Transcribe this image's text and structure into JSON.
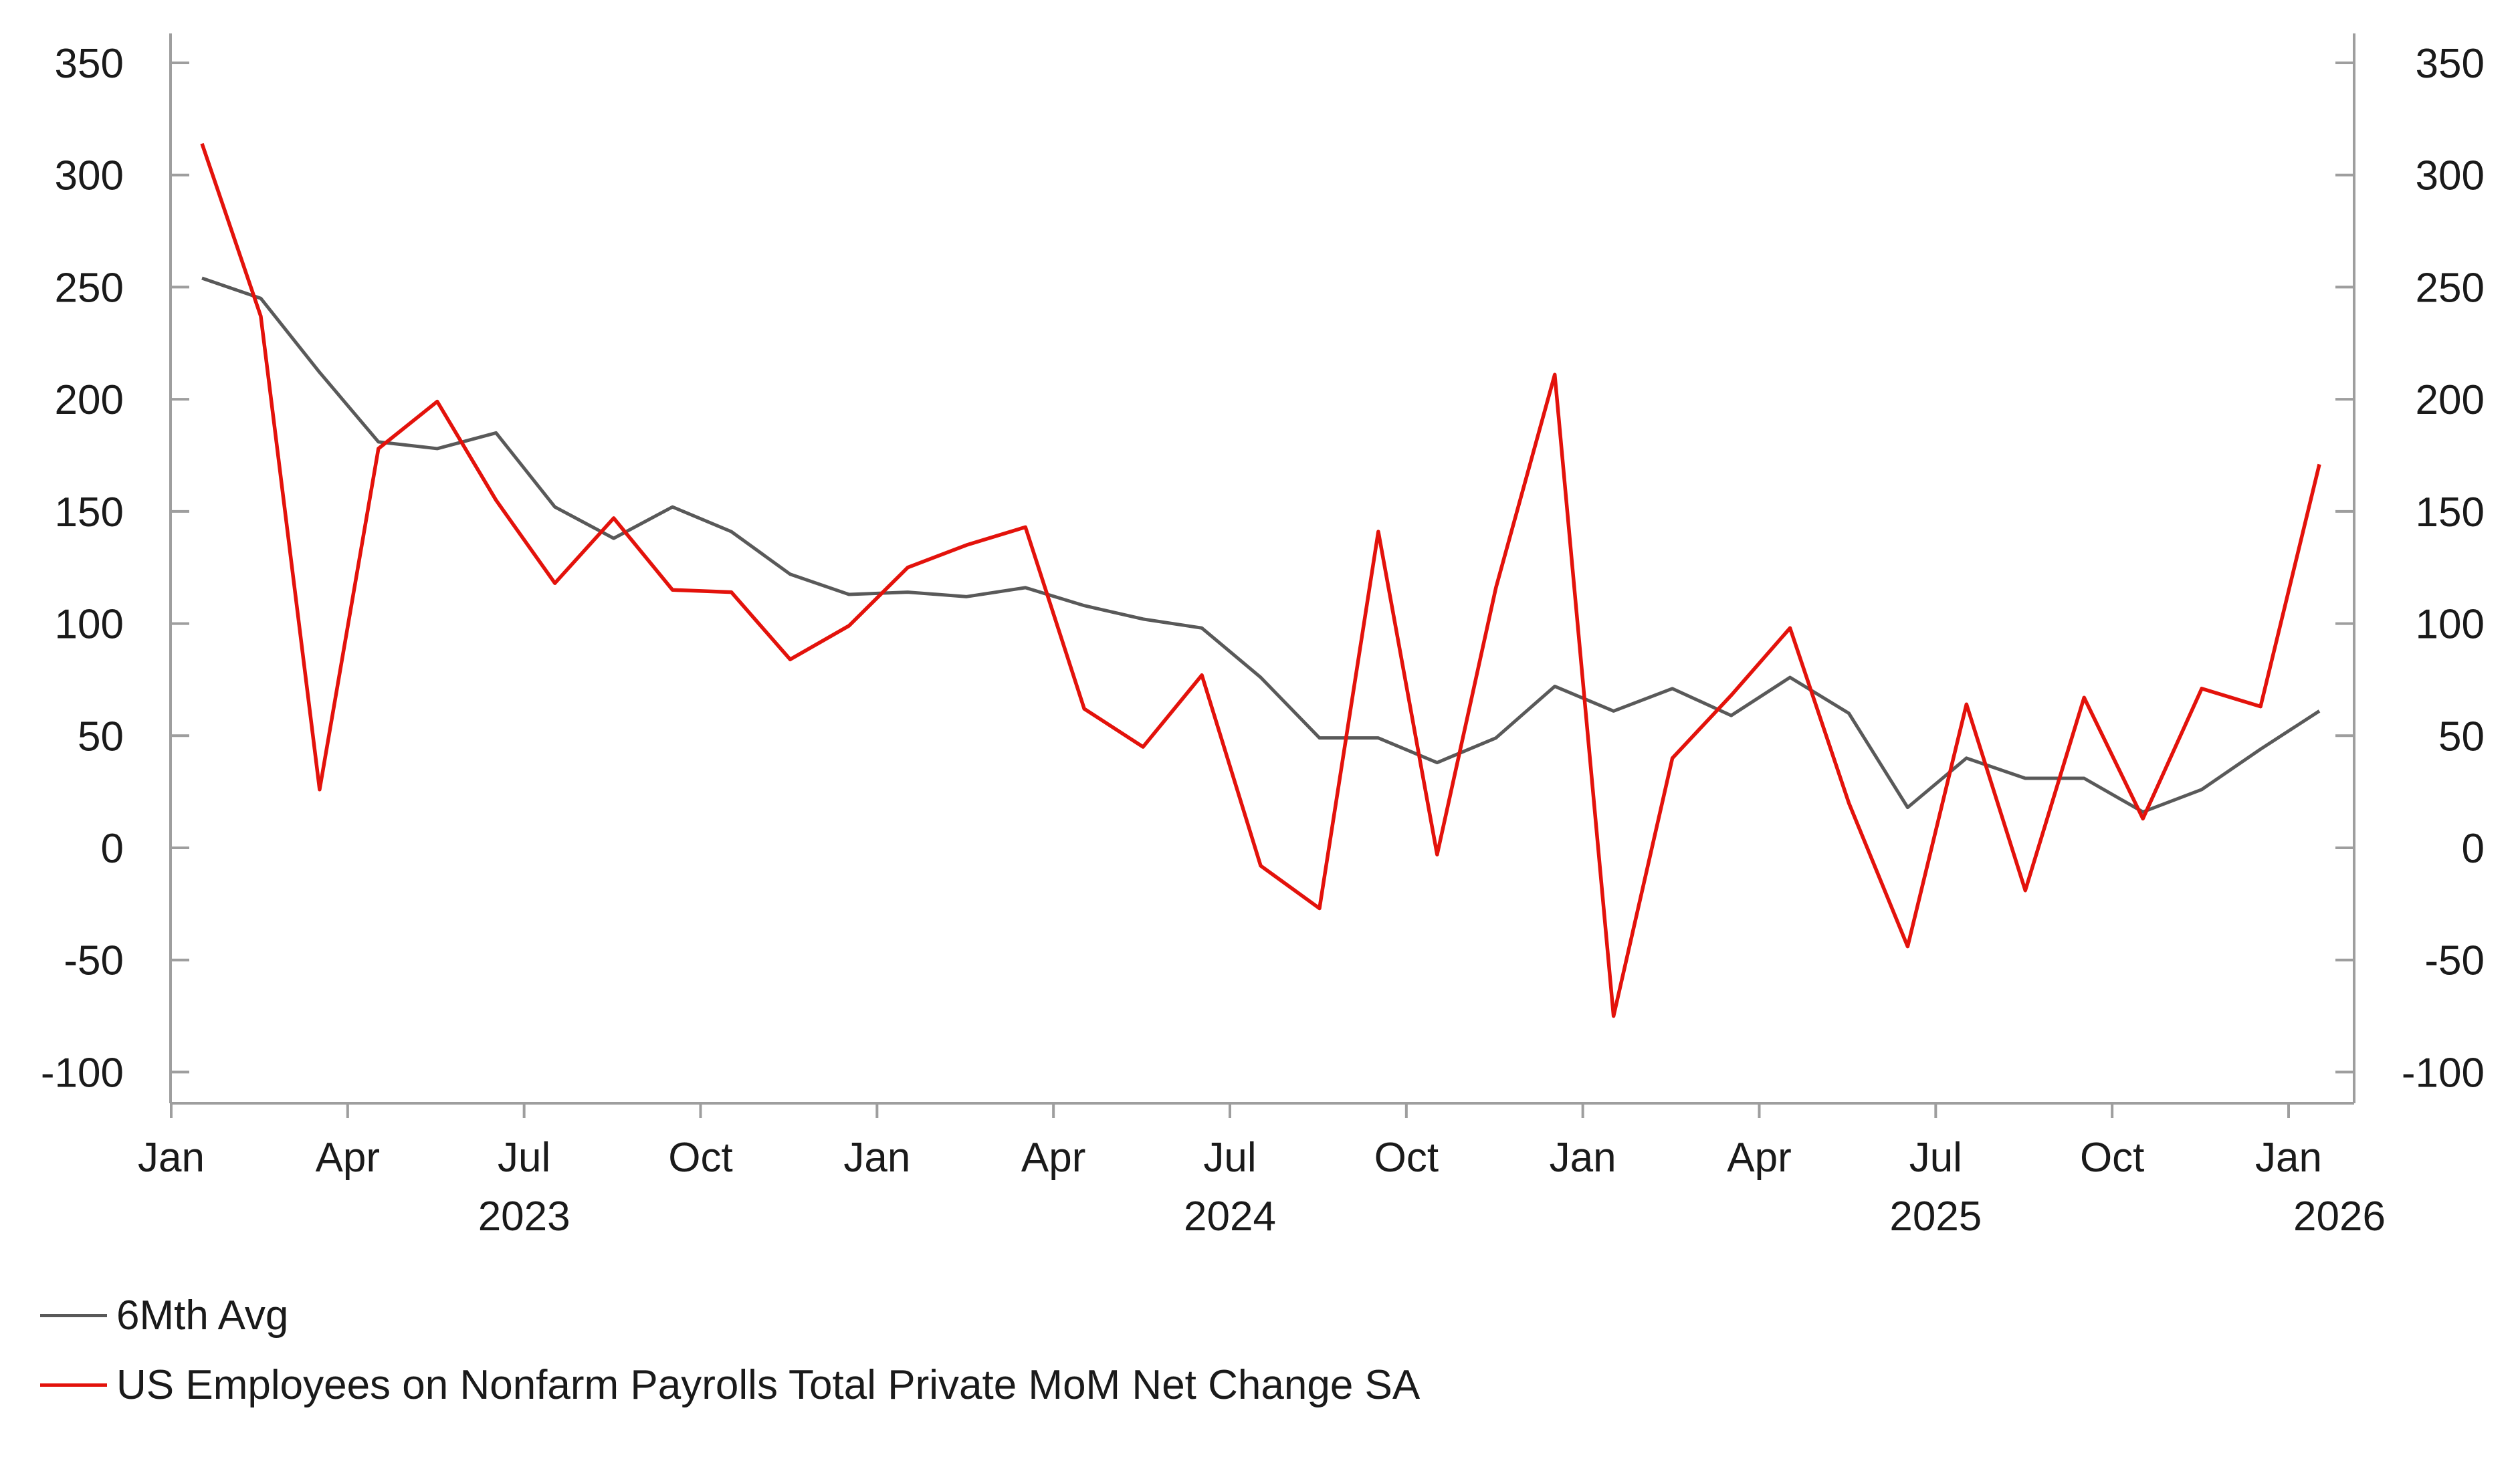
{
  "chart_data": {
    "type": "line",
    "title": "",
    "xlabel": "",
    "ylabel": "",
    "ylim": [
      -100,
      350
    ],
    "y_ticks": [
      350,
      300,
      250,
      200,
      150,
      100,
      50,
      0,
      -50,
      -100
    ],
    "y_tick_labels": [
      "350",
      "300",
      "250",
      "200",
      "150",
      "100",
      "50",
      "0",
      "-50",
      "-100"
    ],
    "x_month_ticks": [
      "Jan",
      "Apr",
      "Jul",
      "Oct",
      "Jan",
      "Apr",
      "Jul",
      "Oct",
      "Jan",
      "Apr",
      "Jul",
      "Oct",
      "Jan"
    ],
    "x_year_labels": [
      "2023",
      "2024",
      "2025",
      "2026"
    ],
    "x": [
      "2023-01",
      "2023-02",
      "2023-03",
      "2023-04",
      "2023-05",
      "2023-06",
      "2023-07",
      "2023-08",
      "2023-09",
      "2023-10",
      "2023-11",
      "2023-12",
      "2024-01",
      "2024-02",
      "2024-03",
      "2024-04",
      "2024-05",
      "2024-06",
      "2024-07",
      "2024-08",
      "2024-09",
      "2024-10",
      "2024-11",
      "2024-12",
      "2025-01",
      "2025-02",
      "2025-03",
      "2025-04",
      "2025-05",
      "2025-06",
      "2025-07",
      "2025-08",
      "2025-09",
      "2025-10",
      "2025-11",
      "2025-12",
      "2026-01"
    ],
    "series": [
      {
        "name": "6Mth Avg",
        "color": "#595959",
        "values": [
          254,
          245,
          212,
          181,
          178,
          185,
          152,
          138,
          152,
          141,
          122,
          113,
          114,
          112,
          116,
          108,
          102,
          98,
          76,
          49,
          49,
          38,
          49,
          72,
          61,
          71,
          59,
          76,
          60,
          18,
          40,
          31,
          31,
          16,
          26,
          44,
          61
        ]
      },
      {
        "name": "US Employees on Nonfarm Payrolls Total Private MoM Net Change SA",
        "color": "#e3120b",
        "values": [
          314,
          237,
          26,
          178,
          199,
          155,
          118,
          147,
          115,
          114,
          84,
          99,
          125,
          135,
          143,
          62,
          45,
          77,
          -8,
          -27,
          141,
          -3,
          116,
          211,
          -75,
          40,
          68,
          98,
          20,
          -44,
          64,
          -19,
          67,
          13,
          71,
          63,
          171
        ]
      }
    ],
    "legend_position": "bottom-left"
  }
}
